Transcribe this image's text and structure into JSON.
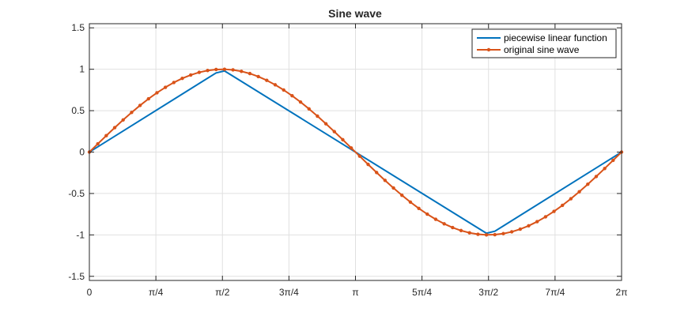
{
  "chart_data": {
    "type": "line",
    "title": "Sine wave",
    "xlabel": "",
    "ylabel": "",
    "xlim": [
      0,
      6.283185307
    ],
    "ylim": [
      -1.55,
      1.55
    ],
    "grid": true,
    "legend_position": "top-right",
    "x_ticks": [
      {
        "value": 0,
        "label": "0"
      },
      {
        "value": 0.785398,
        "label": "π/4"
      },
      {
        "value": 1.570796,
        "label": "π/2"
      },
      {
        "value": 2.356194,
        "label": "3π/4"
      },
      {
        "value": 3.141593,
        "label": "π"
      },
      {
        "value": 3.926991,
        "label": "5π/4"
      },
      {
        "value": 4.712389,
        "label": "3π/2"
      },
      {
        "value": 5.497787,
        "label": "7π/4"
      },
      {
        "value": 6.283185,
        "label": "2π"
      }
    ],
    "y_ticks": [
      {
        "value": 1.5,
        "label": "1.5"
      },
      {
        "value": 1,
        "label": "1"
      },
      {
        "value": 0.5,
        "label": "0.5"
      },
      {
        "value": 0,
        "label": "0"
      },
      {
        "value": -0.5,
        "label": "-0.5"
      },
      {
        "value": -1,
        "label": "-1"
      },
      {
        "value": -1.5,
        "label": "-1.5"
      }
    ],
    "series": [
      {
        "name": "piecewise linear function",
        "color": "#0072BD",
        "marker": "none",
        "x": [
          0,
          1.496,
          1.5956,
          4.6876,
          4.7872,
          6.2832
        ],
        "y": [
          0,
          0.9556,
          0.9802,
          -0.9802,
          -0.9556,
          0
        ]
      },
      {
        "name": "original sine wave",
        "color": "#D95319",
        "marker": "dot",
        "x": [
          0,
          0.0997,
          0.1995,
          0.2992,
          0.3989,
          0.4987,
          0.5984,
          0.6981,
          0.7979,
          0.8976,
          0.9973,
          1.0971,
          1.1968,
          1.2965,
          1.3963,
          1.496,
          1.5957,
          1.6955,
          1.7952,
          1.8949,
          1.9947,
          2.0944,
          2.1941,
          2.2939,
          2.3936,
          2.4933,
          2.5931,
          2.6928,
          2.7925,
          2.8923,
          2.992,
          3.0917,
          3.1915,
          3.2912,
          3.391,
          3.4907,
          3.5904,
          3.6902,
          3.7899,
          3.8896,
          3.9894,
          4.0891,
          4.1888,
          4.2886,
          4.3883,
          4.488,
          4.5878,
          4.6875,
          4.7872,
          4.887,
          4.9867,
          5.0864,
          5.1862,
          5.2859,
          5.3856,
          5.4854,
          5.5851,
          5.6848,
          5.7846,
          5.8843,
          5.984,
          6.0838,
          6.1835,
          6.2832
        ],
        "y": [
          0,
          0.0996,
          0.1982,
          0.2948,
          0.3884,
          0.4783,
          0.5633,
          0.6428,
          0.7159,
          0.7818,
          0.84,
          0.8899,
          0.9309,
          0.9626,
          0.9848,
          0.9972,
          0.9997,
          0.9922,
          0.9749,
          0.9479,
          0.9115,
          0.866,
          0.8119,
          0.7498,
          0.6802,
          0.6038,
          0.5214,
          0.4339,
          0.342,
          0.2468,
          0.149,
          0.0498,
          -0.0498,
          -0.149,
          -0.2468,
          -0.342,
          -0.4339,
          -0.5214,
          -0.6038,
          -0.6802,
          -0.7498,
          -0.8119,
          -0.866,
          -0.9115,
          -0.9479,
          -0.9749,
          -0.9922,
          -0.9997,
          -0.9972,
          -0.9848,
          -0.9626,
          -0.9309,
          -0.8899,
          -0.84,
          -0.7818,
          -0.7159,
          -0.6428,
          -0.5633,
          -0.4783,
          -0.3884,
          -0.2948,
          -0.1982,
          -0.0996,
          0
        ]
      }
    ]
  }
}
